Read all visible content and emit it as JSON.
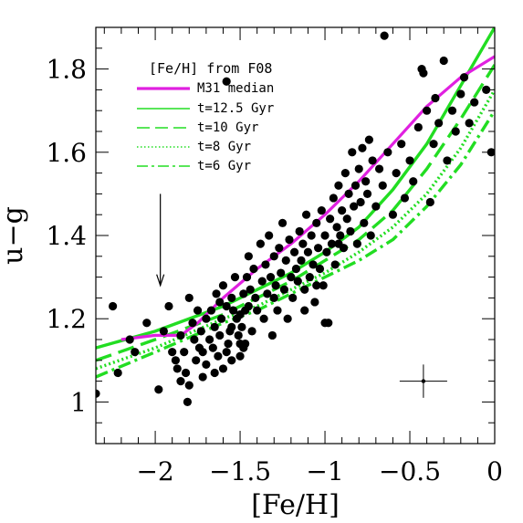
{
  "chart_data": {
    "type": "scatter",
    "xlabel": "[Fe/H]",
    "ylabel": "u−g",
    "xlim": [
      -2.35,
      0.0
    ],
    "ylim": [
      0.9,
      1.9
    ],
    "x_ticks": [
      -2,
      -1.5,
      -1,
      -0.5,
      0
    ],
    "x_tick_labels": [
      "−2",
      "−1.5",
      "−1",
      "−0.5",
      "0"
    ],
    "y_ticks": [
      1.0,
      1.2,
      1.4,
      1.6,
      1.8
    ],
    "y_tick_labels": [
      "1",
      "1.2",
      "1.4",
      "1.6",
      "1.8"
    ],
    "legend": {
      "placement": "top-left",
      "title": "[Fe/H] from F08",
      "entries": [
        "M31 median",
        "t=12.5 Gyr",
        "t=10 Gyr",
        "t=8 Gyr",
        "t=6 Gyr"
      ]
    },
    "colors": {
      "median": "#e020e0",
      "model": "#22dd22",
      "points": "#000000"
    },
    "series": [
      {
        "name": "M31 median",
        "style": "solid-thick",
        "x": [
          -2.2,
          -2.0,
          -1.85,
          -1.75,
          -1.6,
          -1.4,
          -1.2,
          -1.0,
          -0.8,
          -0.6,
          -0.4,
          -0.2,
          0.0
        ],
        "y": [
          1.15,
          1.16,
          1.16,
          1.19,
          1.25,
          1.32,
          1.38,
          1.45,
          1.53,
          1.62,
          1.71,
          1.78,
          1.83
        ]
      },
      {
        "name": "t=12.5 Gyr",
        "style": "solid",
        "x": [
          -2.35,
          -2.0,
          -1.6,
          -1.4,
          -1.2,
          -1.0,
          -0.8,
          -0.6,
          -0.4,
          -0.2,
          0.0
        ],
        "y": [
          1.13,
          1.17,
          1.23,
          1.27,
          1.31,
          1.36,
          1.42,
          1.51,
          1.62,
          1.76,
          1.9
        ]
      },
      {
        "name": "t=10 Gyr",
        "style": "dashed",
        "x": [
          -2.35,
          -2.0,
          -1.6,
          -1.4,
          -1.2,
          -1.0,
          -0.8,
          -0.6,
          -0.4,
          -0.2,
          0.0
        ],
        "y": [
          1.1,
          1.15,
          1.21,
          1.25,
          1.29,
          1.34,
          1.39,
          1.46,
          1.56,
          1.68,
          1.81
        ]
      },
      {
        "name": "t=8 Gyr",
        "style": "dotted",
        "x": [
          -2.35,
          -2.0,
          -1.6,
          -1.4,
          -1.2,
          -1.0,
          -0.8,
          -0.6,
          -0.4,
          -0.2,
          0.0
        ],
        "y": [
          1.08,
          1.13,
          1.2,
          1.23,
          1.27,
          1.31,
          1.36,
          1.42,
          1.5,
          1.61,
          1.75
        ]
      },
      {
        "name": "t=6 Gyr",
        "style": "dash-dot",
        "x": [
          -2.35,
          -2.0,
          -1.6,
          -1.4,
          -1.2,
          -1.0,
          -0.8,
          -0.6,
          -0.4,
          -0.2,
          0.0
        ],
        "y": [
          1.06,
          1.12,
          1.19,
          1.22,
          1.26,
          1.3,
          1.34,
          1.39,
          1.47,
          1.57,
          1.7
        ]
      }
    ],
    "points": [
      [
        -2.35,
        1.02
      ],
      [
        -2.25,
        1.23
      ],
      [
        -2.22,
        1.07
      ],
      [
        -2.15,
        1.15
      ],
      [
        -2.12,
        1.12
      ],
      [
        -2.05,
        1.19
      ],
      [
        -1.95,
        1.17
      ],
      [
        -1.92,
        1.23
      ],
      [
        -1.98,
        1.03
      ],
      [
        -1.9,
        1.12
      ],
      [
        -1.88,
        1.1
      ],
      [
        -1.87,
        1.08
      ],
      [
        -1.85,
        1.16
      ],
      [
        -1.85,
        1.05
      ],
      [
        -1.83,
        1.12
      ],
      [
        -1.82,
        1.07
      ],
      [
        -1.81,
        1.0
      ],
      [
        -1.8,
        1.25
      ],
      [
        -1.8,
        1.04
      ],
      [
        -1.78,
        1.19
      ],
      [
        -1.77,
        1.15
      ],
      [
        -1.76,
        1.1
      ],
      [
        -1.75,
        1.22
      ],
      [
        -1.74,
        1.13
      ],
      [
        -1.73,
        1.17
      ],
      [
        -1.72,
        1.06
      ],
      [
        -1.7,
        1.2
      ],
      [
        -1.7,
        1.09
      ],
      [
        -1.68,
        1.15
      ],
      [
        -1.67,
        1.22
      ],
      [
        -1.66,
        1.13
      ],
      [
        -1.65,
        1.18
      ],
      [
        -1.64,
        1.26
      ],
      [
        -1.63,
        1.11
      ],
      [
        -1.62,
        1.16
      ],
      [
        -1.61,
        1.2
      ],
      [
        -1.6,
        1.08
      ],
      [
        -1.6,
        1.28
      ],
      [
        -1.58,
        1.23
      ],
      [
        -1.57,
        1.14
      ],
      [
        -1.56,
        1.17
      ],
      [
        -1.55,
        1.25
      ],
      [
        -1.55,
        1.1
      ],
      [
        -1.54,
        1.22
      ],
      [
        -1.53,
        1.3
      ],
      [
        -1.52,
        1.2
      ],
      [
        -1.51,
        1.16
      ],
      [
        -1.5,
        1.21
      ],
      [
        -1.5,
        1.11
      ],
      [
        -1.49,
        1.18
      ],
      [
        -1.48,
        1.26
      ],
      [
        -1.47,
        1.14
      ],
      [
        -1.46,
        1.3
      ],
      [
        -1.45,
        1.23
      ],
      [
        -1.45,
        1.35
      ],
      [
        -1.44,
        1.27
      ],
      [
        -1.43,
        1.17
      ],
      [
        -1.42,
        1.32
      ],
      [
        -1.41,
        1.25
      ],
      [
        -1.4,
        1.22
      ],
      [
        -1.38,
        1.38
      ],
      [
        -1.37,
        1.29
      ],
      [
        -1.36,
        1.2
      ],
      [
        -1.35,
        1.33
      ],
      [
        -1.34,
        1.26
      ],
      [
        -1.33,
        1.4
      ],
      [
        -1.32,
        1.3
      ],
      [
        -1.31,
        1.16
      ],
      [
        -1.3,
        1.35
      ],
      [
        -1.29,
        1.28
      ],
      [
        -1.28,
        1.22
      ],
      [
        -1.27,
        1.37
      ],
      [
        -1.26,
        1.31
      ],
      [
        -1.25,
        1.43
      ],
      [
        -1.24,
        1.27
      ],
      [
        -1.23,
        1.34
      ],
      [
        -1.22,
        1.2
      ],
      [
        -1.21,
        1.39
      ],
      [
        -1.2,
        1.3
      ],
      [
        -1.19,
        1.25
      ],
      [
        -1.18,
        1.36
      ],
      [
        -1.17,
        1.32
      ],
      [
        -1.16,
        1.29
      ],
      [
        -1.15,
        1.41
      ],
      [
        -1.14,
        1.34
      ],
      [
        -1.13,
        1.38
      ],
      [
        -1.12,
        1.27
      ],
      [
        -1.11,
        1.45
      ],
      [
        -1.1,
        1.36
      ],
      [
        -1.09,
        1.3
      ],
      [
        -1.08,
        1.4
      ],
      [
        -1.07,
        1.33
      ],
      [
        -1.06,
        1.24
      ],
      [
        -1.05,
        1.43
      ],
      [
        -1.04,
        1.37
      ],
      [
        -1.03,
        1.32
      ],
      [
        -1.02,
        1.46
      ],
      [
        -1.01,
        1.28
      ],
      [
        -1.0,
        1.4
      ],
      [
        -0.99,
        1.36
      ],
      [
        -0.98,
        1.19
      ],
      [
        -0.97,
        1.44
      ],
      [
        -0.96,
        1.38
      ],
      [
        -0.95,
        1.49
      ],
      [
        -0.94,
        1.33
      ],
      [
        -0.93,
        1.42
      ],
      [
        -0.92,
        1.52
      ],
      [
        -0.91,
        1.4
      ],
      [
        -0.9,
        1.46
      ],
      [
        -0.89,
        1.37
      ],
      [
        -0.88,
        1.55
      ],
      [
        -0.87,
        1.44
      ],
      [
        -0.86,
        1.5
      ],
      [
        -0.85,
        1.41
      ],
      [
        -0.84,
        1.6
      ],
      [
        -0.83,
        1.47
      ],
      [
        -0.82,
        1.52
      ],
      [
        -0.81,
        1.38
      ],
      [
        -0.8,
        1.56
      ],
      [
        -0.79,
        1.48
      ],
      [
        -0.78,
        1.61
      ],
      [
        -0.77,
        1.43
      ],
      [
        -0.76,
        1.53
      ],
      [
        -0.75,
        1.5
      ],
      [
        -0.74,
        1.63
      ],
      [
        -0.73,
        1.4
      ],
      [
        -0.72,
        1.58
      ],
      [
        -0.7,
        1.47
      ],
      [
        -0.68,
        1.56
      ],
      [
        -0.66,
        1.52
      ],
      [
        -0.65,
        1.88
      ],
      [
        -0.63,
        1.6
      ],
      [
        -0.6,
        1.45
      ],
      [
        -0.58,
        1.55
      ],
      [
        -0.55,
        1.62
      ],
      [
        -0.53,
        1.49
      ],
      [
        -0.5,
        1.58
      ],
      [
        -0.48,
        1.53
      ],
      [
        -0.45,
        1.66
      ],
      [
        -0.43,
        1.8
      ],
      [
        -0.42,
        1.79
      ],
      [
        -0.4,
        1.7
      ],
      [
        -0.38,
        1.48
      ],
      [
        -0.36,
        1.62
      ],
      [
        -0.35,
        1.73
      ],
      [
        -0.33,
        1.67
      ],
      [
        -0.3,
        1.82
      ],
      [
        -0.28,
        1.58
      ],
      [
        -0.25,
        1.7
      ],
      [
        -0.23,
        1.65
      ],
      [
        -0.2,
        1.74
      ],
      [
        -0.18,
        1.78
      ],
      [
        -0.15,
        1.67
      ],
      [
        -0.12,
        1.72
      ],
      [
        -0.05,
        1.75
      ],
      [
        -0.02,
        1.6
      ],
      [
        -1.0,
        1.19
      ],
      [
        -1.05,
        1.28
      ],
      [
        -1.12,
        1.22
      ],
      [
        -1.3,
        1.25
      ],
      [
        -1.48,
        1.13
      ],
      [
        -1.58,
        1.12
      ],
      [
        -1.65,
        1.07
      ],
      [
        -1.72,
        1.12
      ],
      [
        -1.58,
        1.77
      ],
      [
        -1.55,
        1.18
      ],
      [
        -1.5,
        1.14
      ],
      [
        -1.62,
        1.24
      ],
      [
        -1.47,
        1.22
      ],
      [
        -0.92,
        1.38
      ]
    ],
    "error_bar": {
      "x": -0.42,
      "y": 1.05,
      "xerr": 0.14,
      "yerr": 0.04
    },
    "arrow": {
      "x": -1.97,
      "y_top": 1.5,
      "y_bottom": 1.28
    }
  }
}
